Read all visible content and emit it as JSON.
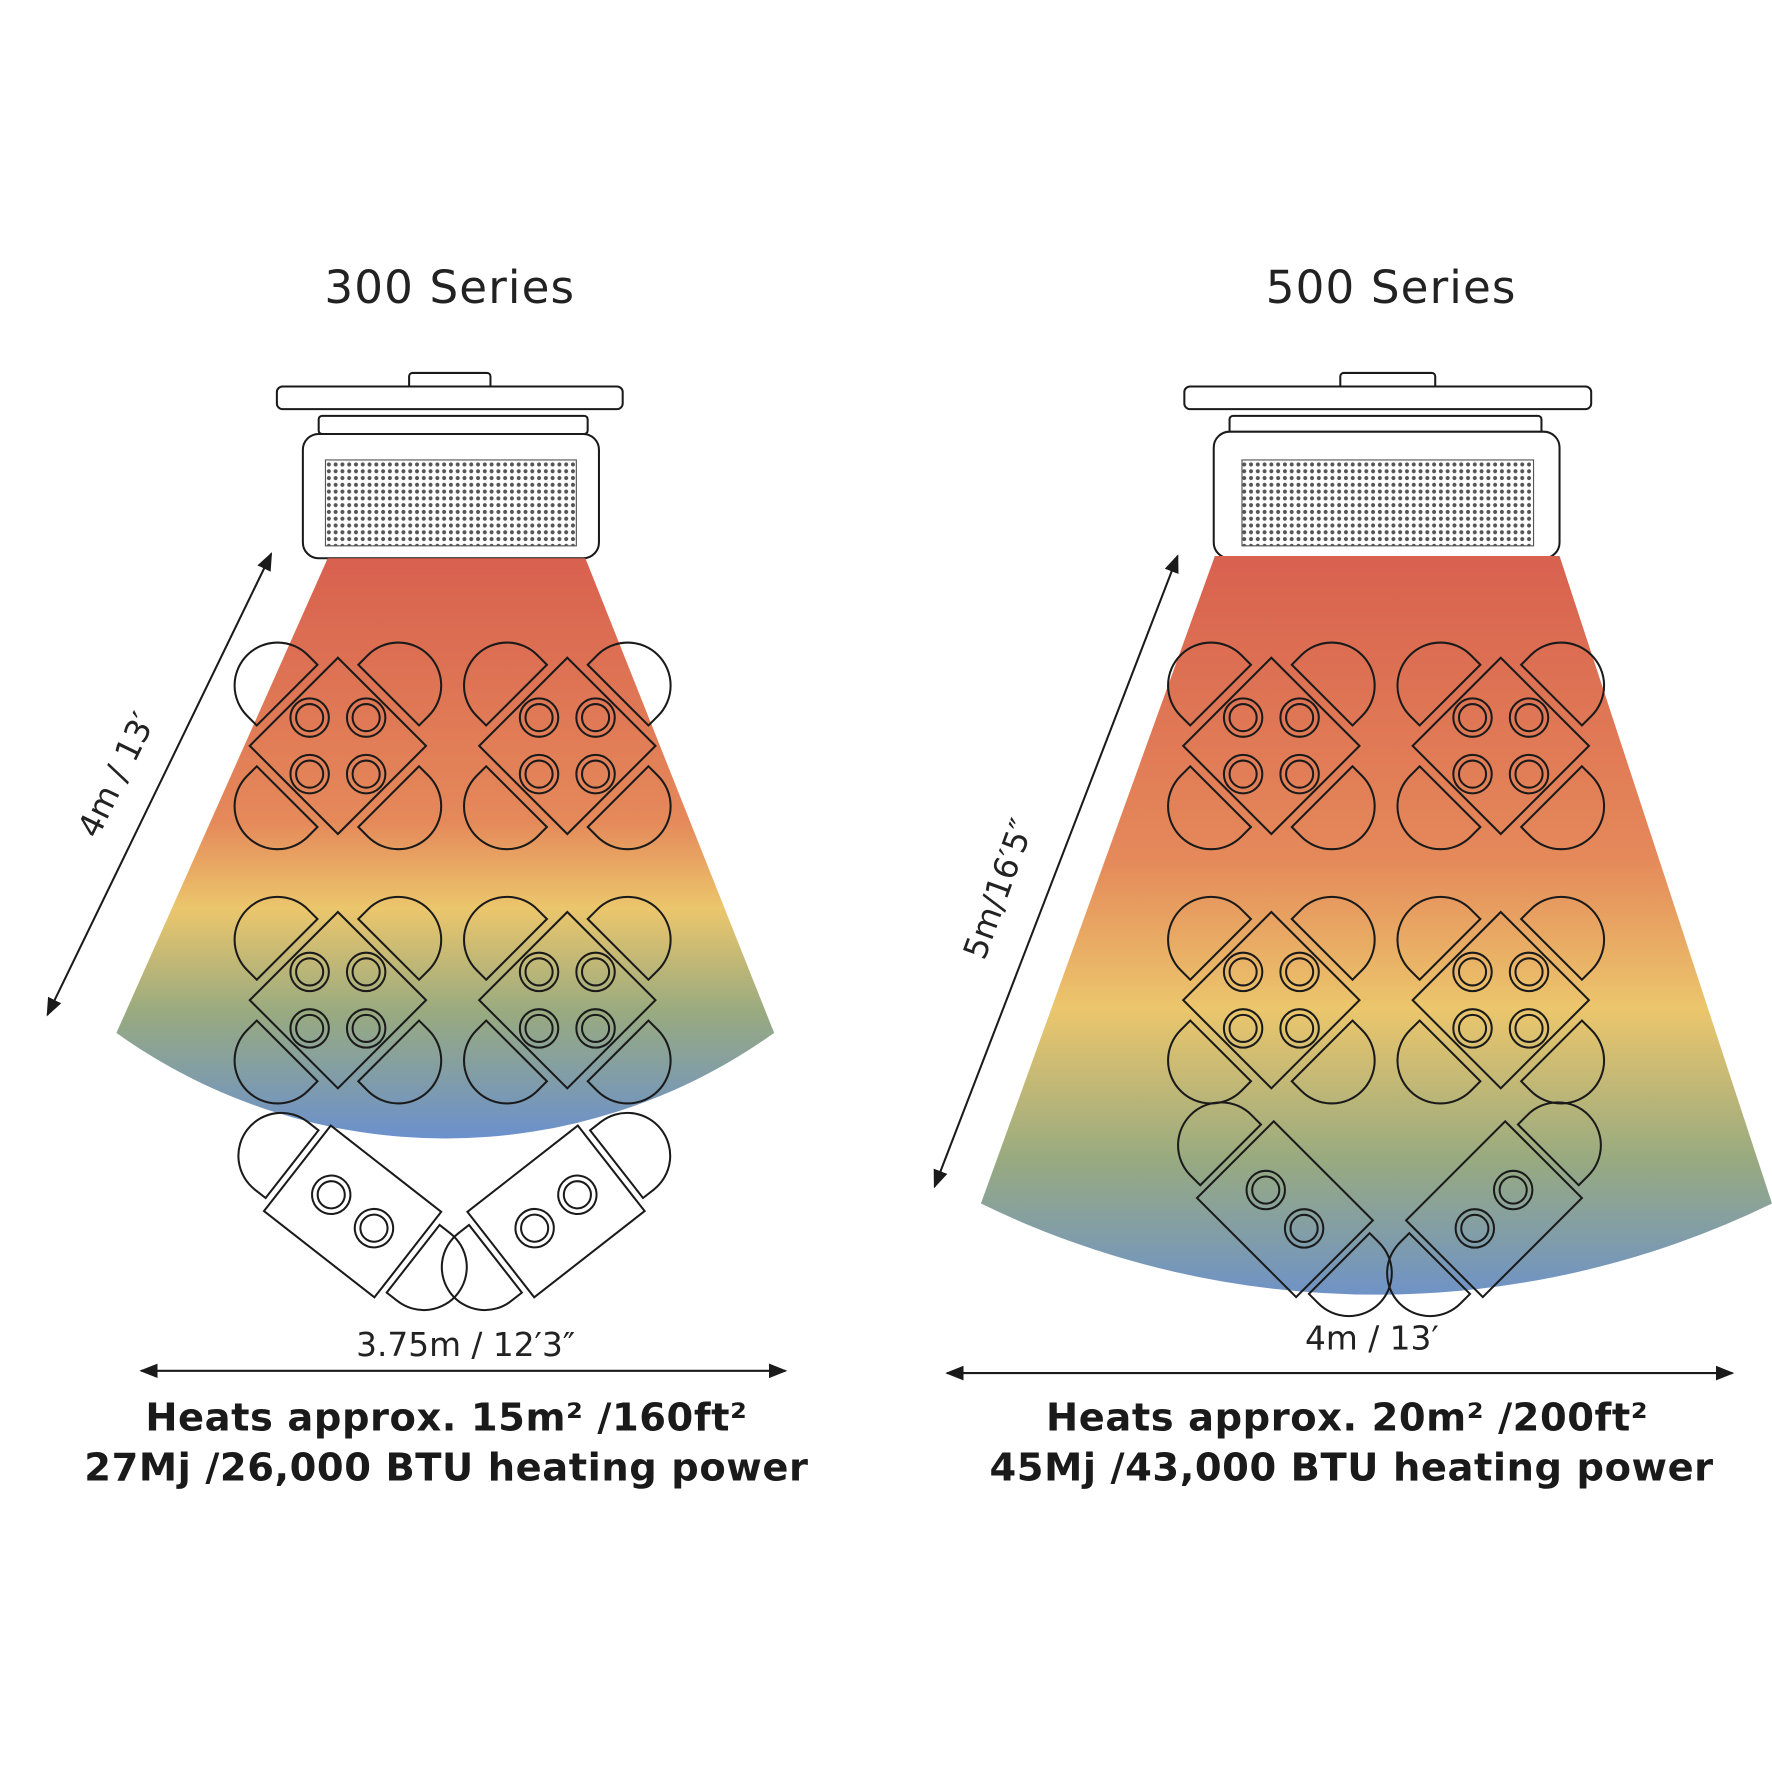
{
  "panels": [
    {
      "title": "300 Series",
      "depth_label": "4m / 13′",
      "width_label": "3.75m / 12′3″",
      "coverage": "Heats approx. 15m²  /160ft²",
      "power": "27Mj /26,000 BTU heating power"
    },
    {
      "title": "500 Series",
      "depth_label": "5m/16′5″",
      "width_label": "4m / 13′",
      "coverage": "Heats approx. 20m² /200ft²",
      "power": "45Mj /43,000 BTU heating power"
    }
  ]
}
